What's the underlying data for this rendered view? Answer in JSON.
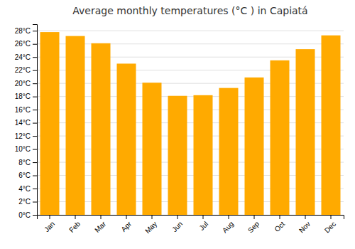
{
  "chart_data": {
    "type": "bar",
    "title": "Average monthly temperatures (°C ) in Capiatá",
    "categories": [
      "Jan",
      "Feb",
      "Mar",
      "Apr",
      "May",
      "Jun",
      "Jul",
      "Aug",
      "Sep",
      "Oct",
      "Nov",
      "Dec"
    ],
    "values": [
      27.8,
      27.2,
      26.1,
      23.0,
      20.1,
      18.1,
      18.2,
      19.3,
      20.9,
      23.5,
      25.2,
      27.3
    ],
    "color": "#FFAA00",
    "ylim": [
      0,
      29
    ],
    "yticks": [
      {
        "value": 0,
        "label": "0°C"
      },
      {
        "value": 2,
        "label": "2°C"
      },
      {
        "value": 4,
        "label": "4°C"
      },
      {
        "value": 6,
        "label": "6°C"
      },
      {
        "value": 8,
        "label": "8°C"
      },
      {
        "value": 10,
        "label": "10°C"
      },
      {
        "value": 12,
        "label": "12°C"
      },
      {
        "value": 14,
        "label": "14°C"
      },
      {
        "value": 16,
        "label": "16°C"
      },
      {
        "value": 18,
        "label": "18°C"
      },
      {
        "value": 20,
        "label": "20°C"
      },
      {
        "value": 22,
        "label": "22°C"
      },
      {
        "value": 24,
        "label": "24°C"
      },
      {
        "value": 26,
        "label": "26°C"
      },
      {
        "value": 28,
        "label": "28°C"
      }
    ],
    "grid": true
  }
}
